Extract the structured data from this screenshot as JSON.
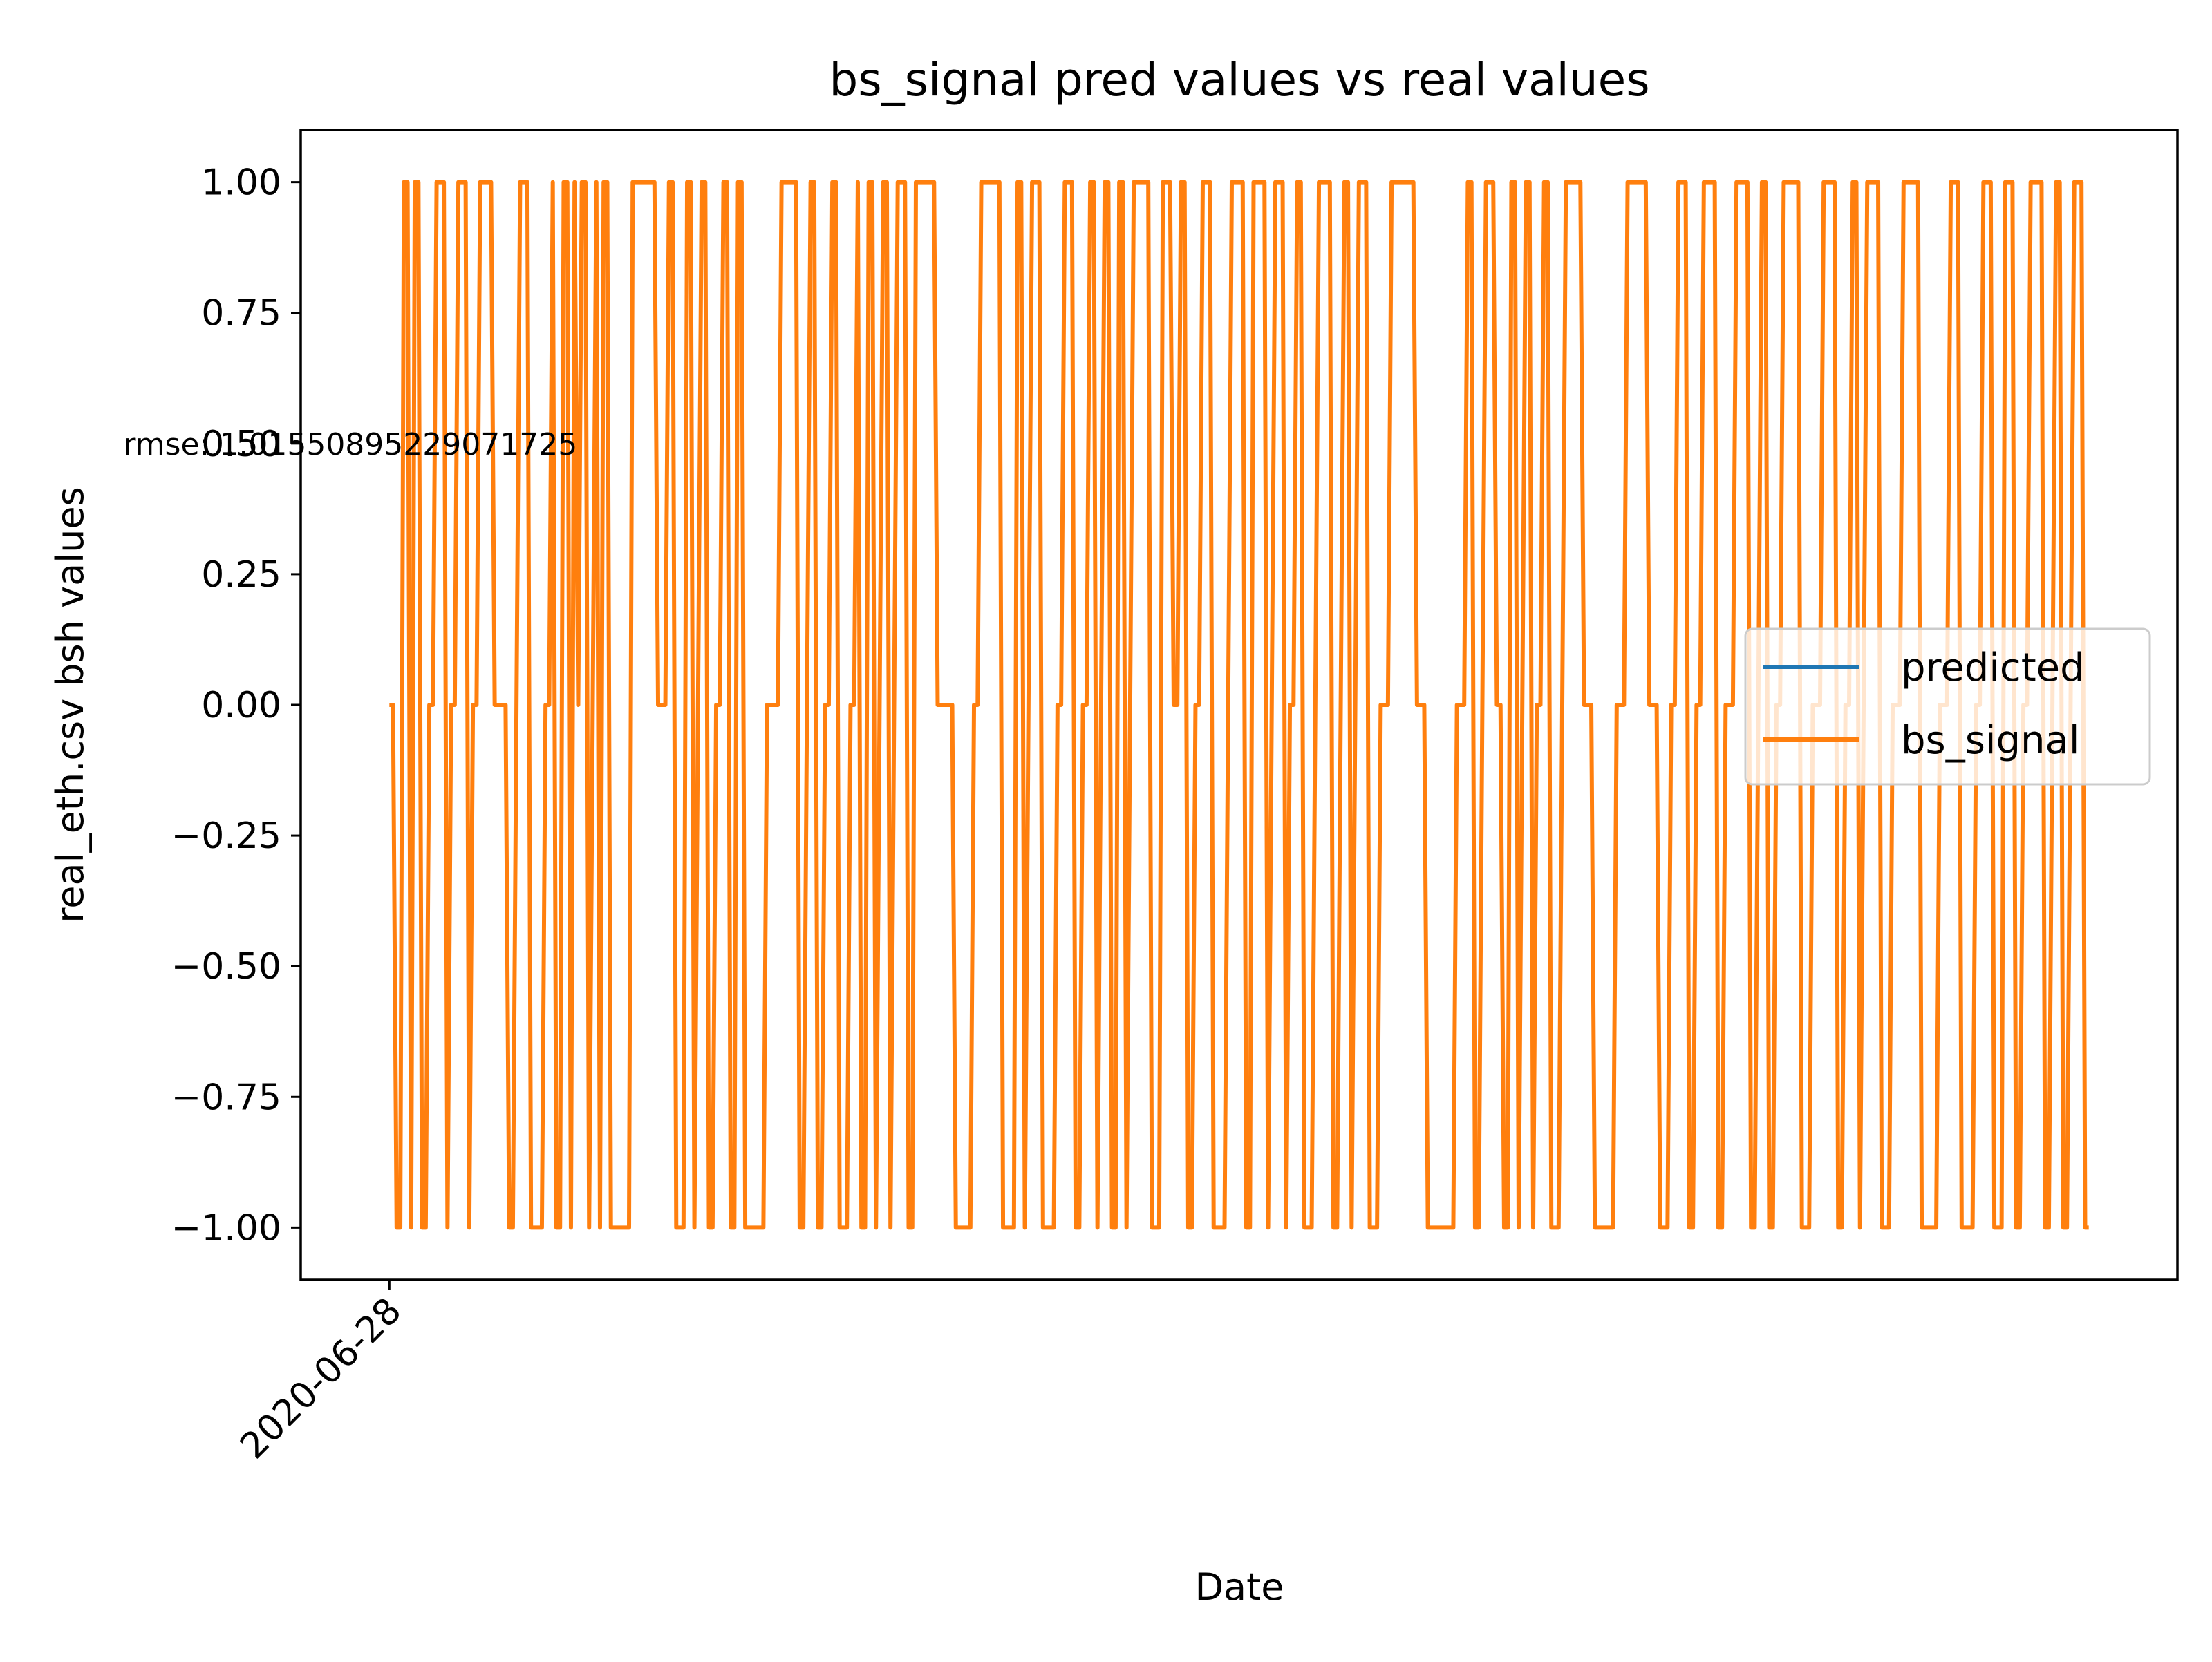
{
  "chart_data": {
    "type": "line",
    "title": "bs_signal pred values vs real values",
    "xlabel": "Date",
    "ylabel": "real_eth.csv bsh values",
    "ylim": [
      -1.1,
      1.1
    ],
    "yticks": [
      -1.0,
      -0.75,
      -0.5,
      -0.25,
      0.0,
      0.25,
      0.5,
      0.75,
      1.0
    ],
    "ytick_labels": [
      "−1.00",
      "−0.75",
      "−0.50",
      "−0.25",
      "0.00",
      "0.25",
      "0.50",
      "0.75",
      "1.00"
    ],
    "xticks": [
      {
        "label": "2020-06-28",
        "index": 0
      }
    ],
    "x_index_range": [
      -25,
      504
    ],
    "x_last_index": 479,
    "grid": false,
    "legend": {
      "placement": "center-right"
    },
    "annotation": {
      "text": "rmse: 1.01550895229071725",
      "x_index": -75,
      "y": 0.5
    },
    "series": [
      {
        "name": "predicted",
        "color": "#1f77b4",
        "values": []
      },
      {
        "name": "bs_signal",
        "color": "#ff7f0e",
        "values": [
          0,
          0,
          -1,
          -1,
          1,
          1,
          -1,
          1,
          1,
          -1,
          -1,
          0,
          0,
          1,
          1,
          1,
          -1,
          0,
          0,
          1,
          1,
          1,
          -1,
          0,
          0,
          1,
          1,
          1,
          1,
          0,
          0,
          0,
          0,
          -1,
          -1,
          0,
          1,
          1,
          1,
          -1,
          -1,
          -1,
          -1,
          0,
          0,
          1,
          -1,
          -1,
          1,
          1,
          -1,
          1,
          0,
          1,
          1,
          -1,
          0,
          1,
          -1,
          1,
          1,
          -1,
          -1,
          -1,
          -1,
          -1,
          -1,
          1,
          1,
          1,
          1,
          1,
          1,
          1,
          0,
          0,
          0,
          1,
          1,
          -1,
          -1,
          -1,
          1,
          1,
          -1,
          0,
          1,
          1,
          -1,
          -1,
          0,
          0,
          1,
          1,
          -1,
          -1,
          1,
          1,
          -1,
          -1,
          -1,
          -1,
          -1,
          -1,
          0,
          0,
          0,
          0,
          1,
          1,
          1,
          1,
          1,
          -1,
          -1,
          0,
          1,
          1,
          -1,
          -1,
          0,
          0,
          1,
          1,
          -1,
          -1,
          -1,
          0,
          0,
          1,
          -1,
          -1,
          1,
          1,
          -1,
          0,
          1,
          1,
          -1,
          0,
          1,
          1,
          1,
          -1,
          -1,
          1,
          1,
          1,
          1,
          1,
          1,
          0,
          0,
          0,
          0,
          0,
          -1,
          -1,
          -1,
          -1,
          -1,
          0,
          0,
          1,
          1,
          1,
          1,
          1,
          1,
          -1,
          -1,
          -1,
          -1,
          1,
          1,
          -1,
          0,
          1,
          1,
          1,
          -1,
          -1,
          -1,
          -1,
          0,
          0,
          1,
          1,
          1,
          -1,
          -1,
          0,
          0,
          1,
          1,
          -1,
          0,
          1,
          1,
          -1,
          -1,
          1,
          1,
          -1,
          0,
          1,
          1,
          1,
          1,
          1,
          -1,
          -1,
          -1,
          1,
          1,
          1,
          0,
          0,
          1,
          1,
          -1,
          -1,
          0,
          0,
          1,
          1,
          1,
          -1,
          -1,
          -1,
          -1,
          0,
          1,
          1,
          1,
          1,
          -1,
          -1,
          1,
          1,
          1,
          1,
          -1,
          0,
          1,
          1,
          1,
          -1,
          0,
          0,
          1,
          1,
          -1,
          -1,
          -1,
          0,
          1,
          1,
          1,
          1,
          -1,
          -1,
          0,
          1,
          1,
          -1,
          0,
          1,
          1,
          1,
          -1,
          -1,
          -1,
          0,
          0,
          0,
          1,
          1,
          1,
          1,
          1,
          1,
          1,
          0,
          0,
          0,
          -1,
          -1,
          -1,
          -1,
          -1,
          -1,
          -1,
          -1,
          0,
          0,
          0,
          1,
          1,
          -1,
          -1,
          0,
          1,
          1,
          1,
          0,
          0,
          -1,
          -1,
          1,
          1,
          -1,
          0,
          1,
          1,
          -1,
          0,
          0,
          1,
          1,
          -1,
          -1,
          -1,
          0,
          1,
          1,
          1,
          1,
          1,
          0,
          0,
          0,
          -1,
          -1,
          -1,
          -1,
          -1,
          -1,
          0,
          0,
          0,
          1,
          1,
          1,
          1,
          1,
          1,
          0,
          0,
          0,
          -1,
          -1,
          -1,
          0,
          0,
          1,
          1,
          1,
          -1,
          -1,
          0,
          0,
          1,
          1,
          1,
          1,
          -1,
          -1,
          0,
          0,
          0,
          1,
          1,
          1,
          1,
          -1,
          -1,
          0,
          1,
          1,
          -1,
          -1,
          0,
          0,
          1,
          1,
          1,
          1,
          1,
          -1,
          -1,
          -1,
          0,
          0,
          0,
          1,
          1,
          1,
          1,
          -1,
          -1,
          0,
          0,
          1,
          1,
          -1,
          0,
          1,
          1,
          1,
          1,
          -1,
          -1,
          -1,
          0,
          0,
          0,
          1,
          1,
          1,
          1,
          1,
          -1,
          -1,
          -1,
          -1,
          -1,
          0,
          0,
          0,
          1,
          1,
          1,
          -1,
          -1,
          -1,
          -1,
          0,
          0,
          1,
          1,
          1,
          -1,
          -1,
          -1,
          1,
          1,
          1,
          -1,
          -1,
          0,
          0,
          1,
          1,
          1,
          1,
          -1,
          -1,
          0,
          1,
          1,
          -1,
          -1,
          0,
          1,
          1,
          1,
          -1,
          -1
        ]
      }
    ]
  }
}
